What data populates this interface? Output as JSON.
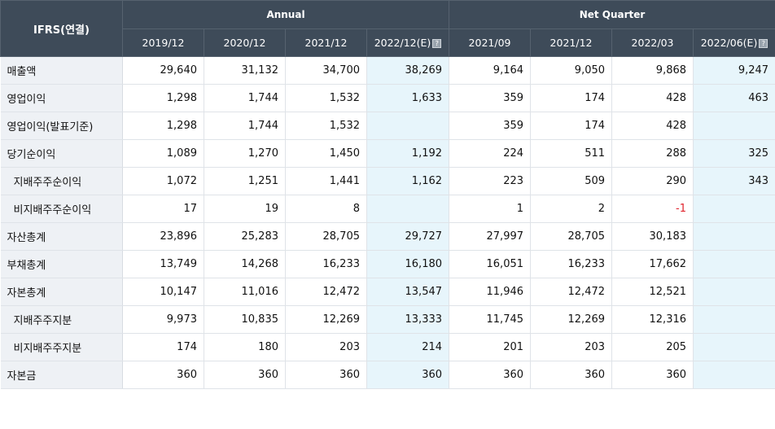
{
  "header": {
    "corner": "IFRS(연결)",
    "annual": "Annual",
    "quarter": "Net Quarter",
    "columns": [
      {
        "label": "2019/12",
        "est": false
      },
      {
        "label": "2020/12",
        "est": false
      },
      {
        "label": "2021/12",
        "est": false
      },
      {
        "label": "2022/12(E)",
        "est": true
      },
      {
        "label": "2021/09",
        "est": false
      },
      {
        "label": "2021/12",
        "est": false
      },
      {
        "label": "2022/03",
        "est": false
      },
      {
        "label": "2022/06(E)",
        "est": true
      }
    ]
  },
  "rows": [
    {
      "label": "매출액",
      "indent": false,
      "values": [
        "29,640",
        "31,132",
        "34,700",
        "38,269",
        "9,164",
        "9,050",
        "9,868",
        "9,247"
      ]
    },
    {
      "label": "영업이익",
      "indent": false,
      "values": [
        "1,298",
        "1,744",
        "1,532",
        "1,633",
        "359",
        "174",
        "428",
        "463"
      ]
    },
    {
      "label": "영업이익(발표기준)",
      "indent": false,
      "values": [
        "1,298",
        "1,744",
        "1,532",
        "",
        "359",
        "174",
        "428",
        ""
      ]
    },
    {
      "label": "당기순이익",
      "indent": false,
      "values": [
        "1,089",
        "1,270",
        "1,450",
        "1,192",
        "224",
        "511",
        "288",
        "325"
      ]
    },
    {
      "label": "지배주주순이익",
      "indent": true,
      "values": [
        "1,072",
        "1,251",
        "1,441",
        "1,162",
        "223",
        "509",
        "290",
        "343"
      ]
    },
    {
      "label": "비지배주주순이익",
      "indent": true,
      "values": [
        "17",
        "19",
        "8",
        "",
        "1",
        "2",
        "-1",
        ""
      ]
    },
    {
      "label": "자산총계",
      "indent": false,
      "values": [
        "23,896",
        "25,283",
        "28,705",
        "29,727",
        "27,997",
        "28,705",
        "30,183",
        ""
      ]
    },
    {
      "label": "부채총계",
      "indent": false,
      "values": [
        "13,749",
        "14,268",
        "16,233",
        "16,180",
        "16,051",
        "16,233",
        "17,662",
        ""
      ]
    },
    {
      "label": "자본총계",
      "indent": false,
      "values": [
        "10,147",
        "11,016",
        "12,472",
        "13,547",
        "11,946",
        "12,472",
        "12,521",
        ""
      ]
    },
    {
      "label": "지배주주지분",
      "indent": true,
      "values": [
        "9,973",
        "10,835",
        "12,269",
        "13,333",
        "11,745",
        "12,269",
        "12,316",
        ""
      ]
    },
    {
      "label": "비지배주주지분",
      "indent": true,
      "values": [
        "174",
        "180",
        "203",
        "214",
        "201",
        "203",
        "205",
        ""
      ]
    },
    {
      "label": "자본금",
      "indent": false,
      "values": [
        "360",
        "360",
        "360",
        "360",
        "360",
        "360",
        "360",
        ""
      ]
    }
  ]
}
